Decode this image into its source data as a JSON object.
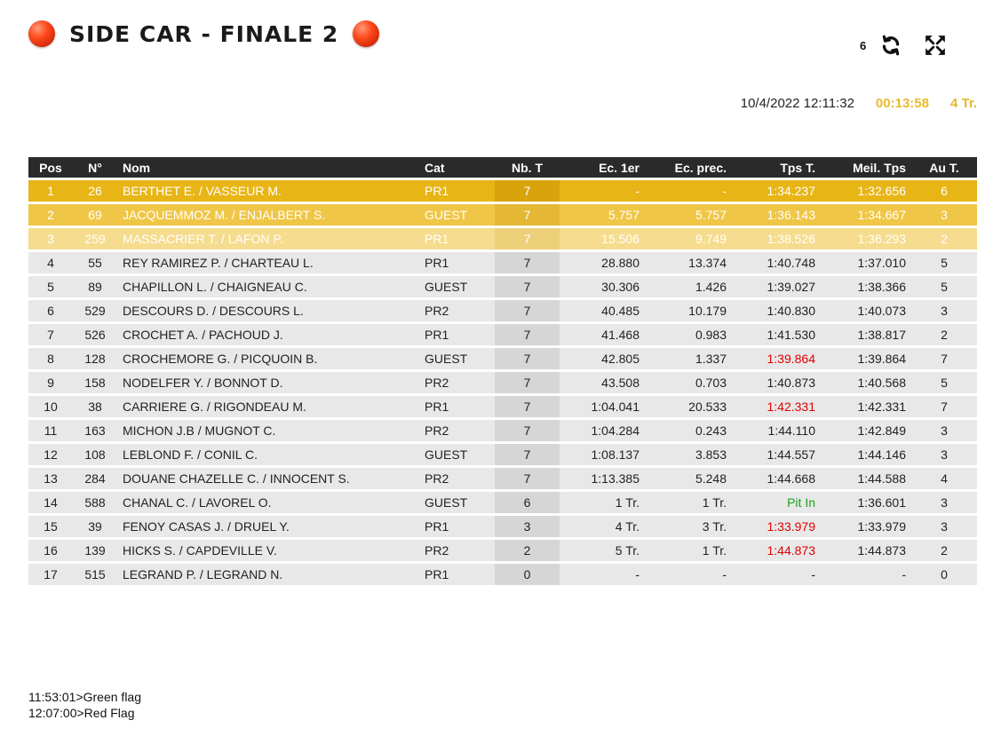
{
  "header": {
    "title": "SIDE CAR - FINALE 2",
    "counter": "6"
  },
  "status": {
    "datetime": "10/4/2022 12:11:32",
    "elapsed": "00:13:58",
    "laps_remaining": "4 Tr."
  },
  "columns": {
    "pos": "Pos",
    "num": "N°",
    "nom": "Nom",
    "cat": "Cat",
    "nbt": "Nb. T",
    "ec1": "Ec. 1er",
    "ecp": "Ec. prec.",
    "tps": "Tps T.",
    "meil": "Meil. Tps",
    "aut": "Au T."
  },
  "rows": [
    {
      "pos": "1",
      "num": "26",
      "nom": "BERTHET E. / VASSEUR M.",
      "cat": "PR1",
      "nbt": "7",
      "ec1": "-",
      "ecp": "-",
      "tps": "1:34.237",
      "meil": "1:32.656",
      "aut": "6"
    },
    {
      "pos": "2",
      "num": "69",
      "nom": "JACQUEMMOZ M. / ENJALBERT S.",
      "cat": "GUEST",
      "nbt": "7",
      "ec1": "5.757",
      "ecp": "5.757",
      "tps": "1:36.143",
      "meil": "1:34.667",
      "aut": "3"
    },
    {
      "pos": "3",
      "num": "259",
      "nom": "MASSACRIER T. / LAFON P.",
      "cat": "PR1",
      "nbt": "7",
      "ec1": "15.506",
      "ecp": "9.749",
      "tps": "1:38.526",
      "meil": "1:36.293",
      "aut": "2"
    },
    {
      "pos": "4",
      "num": "55",
      "nom": "REY RAMIREZ P. / CHARTEAU L.",
      "cat": "PR1",
      "nbt": "7",
      "ec1": "28.880",
      "ecp": "13.374",
      "tps": "1:40.748",
      "meil": "1:37.010",
      "aut": "5"
    },
    {
      "pos": "5",
      "num": "89",
      "nom": "CHAPILLON L. / CHAIGNEAU C.",
      "cat": "GUEST",
      "nbt": "7",
      "ec1": "30.306",
      "ecp": "1.426",
      "tps": "1:39.027",
      "meil": "1:38.366",
      "aut": "5"
    },
    {
      "pos": "6",
      "num": "529",
      "nom": "DESCOURS D. / DESCOURS L.",
      "cat": "PR2",
      "nbt": "7",
      "ec1": "40.485",
      "ecp": "10.179",
      "tps": "1:40.830",
      "meil": "1:40.073",
      "aut": "3"
    },
    {
      "pos": "7",
      "num": "526",
      "nom": "CROCHET A. / PACHOUD J.",
      "cat": "PR1",
      "nbt": "7",
      "ec1": "41.468",
      "ecp": "0.983",
      "tps": "1:41.530",
      "meil": "1:38.817",
      "aut": "2"
    },
    {
      "pos": "8",
      "num": "128",
      "nom": "CROCHEMORE G. / PICQUOIN B.",
      "cat": "GUEST",
      "nbt": "7",
      "ec1": "42.805",
      "ecp": "1.337",
      "tps": "1:39.864",
      "tps_color": "red",
      "meil": "1:39.864",
      "aut": "7"
    },
    {
      "pos": "9",
      "num": "158",
      "nom": "NODELFER Y. / BONNOT D.",
      "cat": "PR2",
      "nbt": "7",
      "ec1": "43.508",
      "ecp": "0.703",
      "tps": "1:40.873",
      "meil": "1:40.568",
      "aut": "5"
    },
    {
      "pos": "10",
      "num": "38",
      "nom": "CARRIERE G. / RIGONDEAU M.",
      "cat": "PR1",
      "nbt": "7",
      "ec1": "1:04.041",
      "ecp": "20.533",
      "tps": "1:42.331",
      "tps_color": "red",
      "meil": "1:42.331",
      "aut": "7"
    },
    {
      "pos": "11",
      "num": "163",
      "nom": "MICHON J.B / MUGNOT C.",
      "cat": "PR2",
      "nbt": "7",
      "ec1": "1:04.284",
      "ecp": "0.243",
      "tps": "1:44.110",
      "meil": "1:42.849",
      "aut": "3"
    },
    {
      "pos": "12",
      "num": "108",
      "nom": "LEBLOND F. / CONIL C.",
      "cat": "GUEST",
      "nbt": "7",
      "ec1": "1:08.137",
      "ecp": "3.853",
      "tps": "1:44.557",
      "meil": "1:44.146",
      "aut": "3"
    },
    {
      "pos": "13",
      "num": "284",
      "nom": "DOUANE CHAZELLE C. / INNOCENT S.",
      "cat": "PR2",
      "nbt": "7",
      "ec1": "1:13.385",
      "ecp": "5.248",
      "tps": "1:44.668",
      "meil": "1:44.588",
      "aut": "4"
    },
    {
      "pos": "14",
      "num": "588",
      "nom": "CHANAL C. / LAVOREL O.",
      "cat": "GUEST",
      "nbt": "6",
      "ec1": "1 Tr.",
      "ecp": "1 Tr.",
      "tps": "Pit In",
      "tps_color": "green",
      "meil": "1:36.601",
      "aut": "3"
    },
    {
      "pos": "15",
      "num": "39",
      "nom": "FENOY CASAS J. / DRUEL Y.",
      "cat": "PR1",
      "nbt": "3",
      "ec1": "4 Tr.",
      "ecp": "3 Tr.",
      "tps": "1:33.979",
      "tps_color": "red",
      "meil": "1:33.979",
      "aut": "3"
    },
    {
      "pos": "16",
      "num": "139",
      "nom": "HICKS S. / CAPDEVILLE V.",
      "cat": "PR2",
      "nbt": "2",
      "ec1": "5 Tr.",
      "ecp": "1 Tr.",
      "tps": "1:44.873",
      "tps_color": "red",
      "meil": "1:44.873",
      "aut": "2"
    },
    {
      "pos": "17",
      "num": "515",
      "nom": "LEGRAND P. / LEGRAND N.",
      "cat": "PR1",
      "nbt": "0",
      "ec1": "-",
      "ecp": "-",
      "tps": "-",
      "meil": "-",
      "aut": "0"
    }
  ],
  "log": [
    "11:53:01>Green flag",
    "12:07:00>Red Flag"
  ],
  "colors": {
    "first": "#e8b516",
    "second": "#f0c646",
    "third": "#f6dc8e",
    "best_lap": "#e00000",
    "pit": "#18a418",
    "elapsed": "#e8b92e"
  },
  "icons": {
    "decoration": "red-ball-icon",
    "refresh": "refresh-icon",
    "fullscreen": "fullscreen-icon"
  }
}
